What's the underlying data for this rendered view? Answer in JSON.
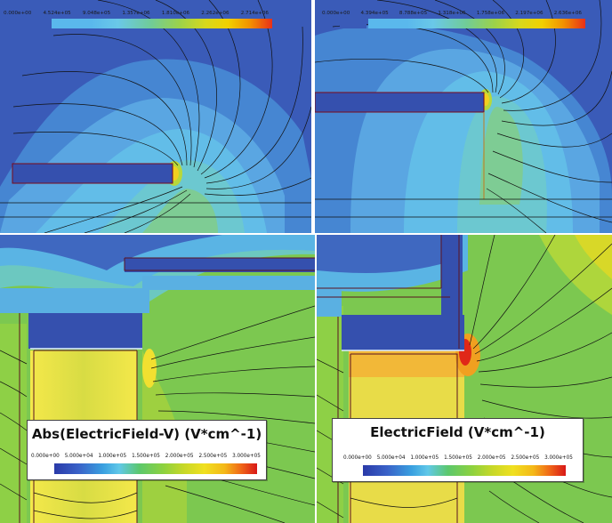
{
  "panels": {
    "top_left": {
      "scale_labels": [
        "0.000e+00",
        "4.524e+05",
        "9.048e+05",
        "1.357e+06",
        "1.810e+06",
        "2.262e+06",
        "2.714e+06"
      ]
    },
    "top_right": {
      "scale_labels": [
        "0.000e+00",
        "4.394e+05",
        "8.788e+05",
        "1.318e+06",
        "1.758e+06",
        "2.197e+06",
        "2.636e+06"
      ]
    },
    "bottom_left": {
      "legend_title": "Abs(ElectricField-V) (V*cm^-1)",
      "legend_labels": [
        "0.000e+00",
        "5.000e+04",
        "1.000e+05",
        "1.500e+05",
        "2.000e+05",
        "2.500e+05",
        "3.000e+05"
      ]
    },
    "bottom_right": {
      "legend_title": "ElectricField (V*cm^-1)",
      "legend_labels": [
        "0.000e+00",
        "5.000e+04",
        "1.000e+05",
        "1.500e+05",
        "2.000e+05",
        "2.500e+05",
        "3.000e+05"
      ]
    }
  },
  "colors": {
    "background_low": "#3a5bb8",
    "field_mid": "#5ab8ec",
    "field_green": "#7cc850",
    "field_yellow": "#f2e24a",
    "field_red": "#e23020",
    "outline": "#7a0a18"
  }
}
